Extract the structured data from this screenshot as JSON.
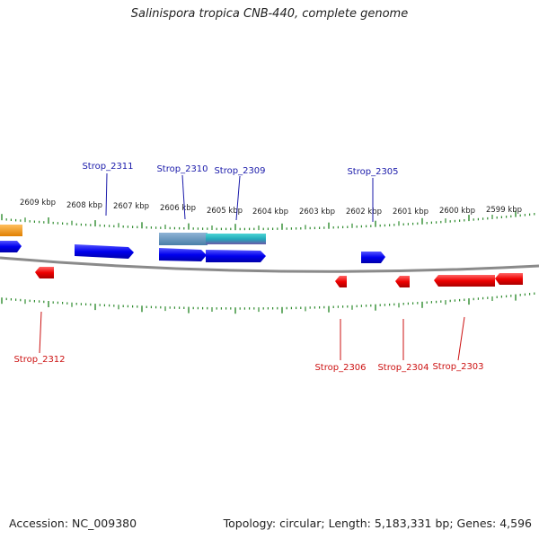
{
  "title": "Salinispora tropica CNB-440, complete genome",
  "footer": {
    "accession": "Accession: NC_009380",
    "summary": "Topology: circular; Length: 5,183,331 bp; Genes: 4,596"
  },
  "colors": {
    "forward_gene": "#1111dd",
    "reverse_gene": "#ee1111",
    "forward_label": "#1a1aaa",
    "reverse_label": "#cc1111",
    "ticks": "#2e8b2e",
    "backbone": "#888888",
    "orange_feature": "#f59a14"
  },
  "scale_labels": [
    "2609 kbp",
    "2608 kbp",
    "2607 kbp",
    "2606 kbp",
    "2605 kbp",
    "2604 kbp",
    "2603 kbp",
    "2602 kbp",
    "2601 kbp",
    "2600 kbp",
    "2599 kbp"
  ],
  "forward_labels": [
    "Strop_2311",
    "Strop_2310",
    "Strop_2309",
    "Strop_2305"
  ],
  "reverse_labels": [
    "Strop_2312",
    "Strop_2306",
    "Strop_2304",
    "Strop_2303"
  ]
}
